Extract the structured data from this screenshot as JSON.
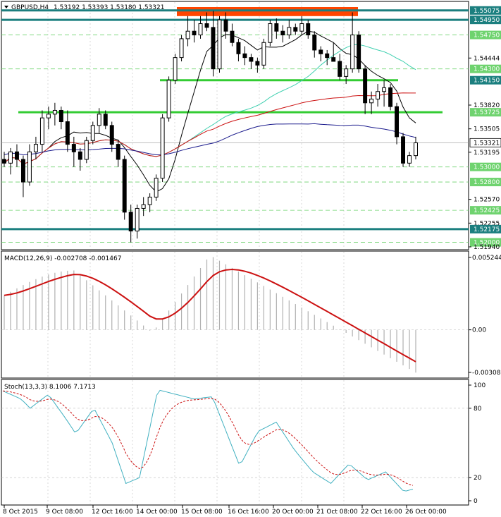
{
  "header": {
    "symbol": "GBPUSD,H4",
    "ohlc": "1.53192 1.53393 1.53180 1.53321"
  },
  "colors": {
    "background": "#ffffff",
    "grid": "#c0c0c0",
    "bull_candle": "#ffffff",
    "bear_candle": "#000000",
    "sma_black": "#000000",
    "sma_navy": "#1a1a8c",
    "sma_red": "#cc1111",
    "sma_teal": "#40d0b0",
    "level_teal": "#1b7f7f",
    "level_green": "#33cc33",
    "zone_orange": "#ff4500",
    "price_label_green": "#6fd36f",
    "current_price_label": "#ffffff",
    "macd_line": "#cc1111",
    "macd_hist": "#b0b0b0",
    "stoch_main": "#40b0c0",
    "stoch_signal": "#cc1111"
  },
  "price_pane": {
    "price_labels": [
      {
        "text": "1.55075",
        "style": "teal"
      },
      {
        "text": "1.54950",
        "style": "teal"
      },
      {
        "text": "1.54750",
        "style": "green"
      },
      {
        "text": "1.54444",
        "style": "plain"
      },
      {
        "text": "1.54300",
        "style": "green"
      },
      {
        "text": "1.54150",
        "style": "teal"
      },
      {
        "text": "1.53820",
        "style": "plain"
      },
      {
        "text": "1.53725",
        "style": "green"
      },
      {
        "text": "1.53505",
        "style": "plain"
      },
      {
        "text": "1.53321",
        "style": "current"
      },
      {
        "text": "1.53195",
        "style": "plain"
      },
      {
        "text": "1.53000",
        "style": "green"
      },
      {
        "text": "1.52800",
        "style": "green"
      },
      {
        "text": "1.52570",
        "style": "plain"
      },
      {
        "text": "1.52425",
        "style": "green"
      },
      {
        "text": "1.52255",
        "style": "plain"
      },
      {
        "text": "1.52175",
        "style": "teal"
      },
      {
        "text": "1.52000",
        "style": "green"
      },
      {
        "text": "1.51940",
        "style": "plain"
      }
    ]
  },
  "macd_pane": {
    "title": "MACD(12,26,9) -0.002708 -0.001467",
    "scale_labels": [
      "0.005244",
      "0.00",
      "-0.003086"
    ]
  },
  "stoch_pane": {
    "title": "Stoch(13,3,3) 8.1006 7.1713",
    "scale_labels": [
      "100",
      "80",
      "20",
      "0"
    ]
  },
  "time_axis": {
    "labels": [
      "8 Oct 2015",
      "9 Oct 08:00",
      "12 Oct 16:00",
      "14 Oct 00:00",
      "15 Oct 08:00",
      "16 Oct 16:00",
      "20 Oct 00:00",
      "21 Oct 08:00",
      "22 Oct 16:00",
      "26 Oct 00:00"
    ]
  },
  "chart_data": [
    {
      "type": "candlestick",
      "title": "GBPUSD,H4",
      "ylim": [
        1.5194,
        1.5512
      ],
      "candles": [
        [
          1.531,
          1.532,
          1.53,
          1.5305
        ],
        [
          1.5305,
          1.5325,
          1.529,
          1.532
        ],
        [
          1.532,
          1.533,
          1.53,
          1.531
        ],
        [
          1.531,
          1.5315,
          1.526,
          1.528
        ],
        [
          1.528,
          1.533,
          1.5275,
          1.532
        ],
        [
          1.532,
          1.534,
          1.531,
          1.533
        ],
        [
          1.533,
          1.5375,
          1.532,
          1.5365
        ],
        [
          1.5365,
          1.538,
          1.535,
          1.537
        ],
        [
          1.537,
          1.5385,
          1.5355,
          1.5375
        ],
        [
          1.5375,
          1.538,
          1.535,
          1.536
        ],
        [
          1.536,
          1.5375,
          1.532,
          1.533
        ],
        [
          1.533,
          1.534,
          1.53,
          1.532
        ],
        [
          1.532,
          1.5325,
          1.5295,
          1.531
        ],
        [
          1.531,
          1.534,
          1.5305,
          1.5335
        ],
        [
          1.5335,
          1.536,
          1.533,
          1.5355
        ],
        [
          1.5355,
          1.5378,
          1.5345,
          1.537
        ],
        [
          1.537,
          1.5375,
          1.535,
          1.5355
        ],
        [
          1.5355,
          1.536,
          1.532,
          1.533
        ],
        [
          1.533,
          1.5335,
          1.53,
          1.531
        ],
        [
          1.531,
          1.5315,
          1.523,
          1.524
        ],
        [
          1.524,
          1.525,
          1.52,
          1.5215
        ],
        [
          1.5215,
          1.525,
          1.5205,
          1.5245
        ],
        [
          1.5245,
          1.526,
          1.5235,
          1.525
        ],
        [
          1.525,
          1.5265,
          1.524,
          1.526
        ],
        [
          1.526,
          1.529,
          1.5255,
          1.5285
        ],
        [
          1.5285,
          1.537,
          1.528,
          1.5365
        ],
        [
          1.5365,
          1.542,
          1.536,
          1.5415
        ],
        [
          1.5415,
          1.545,
          1.541,
          1.5445
        ],
        [
          1.5445,
          1.5475,
          1.544,
          1.547
        ],
        [
          1.547,
          1.55,
          1.546,
          1.548
        ],
        [
          1.548,
          1.5495,
          1.5465,
          1.5475
        ],
        [
          1.5475,
          1.55,
          1.547,
          1.549
        ],
        [
          1.549,
          1.5505,
          1.548,
          1.5485
        ],
        [
          1.5485,
          1.5507,
          1.542,
          1.543
        ],
        [
          1.543,
          1.55,
          1.5425,
          1.5495
        ],
        [
          1.5495,
          1.5505,
          1.547,
          1.548
        ],
        [
          1.548,
          1.549,
          1.546,
          1.5465
        ],
        [
          1.5465,
          1.547,
          1.544,
          1.545
        ],
        [
          1.545,
          1.546,
          1.5435,
          1.5445
        ],
        [
          1.5445,
          1.545,
          1.543,
          1.544
        ],
        [
          1.544,
          1.5445,
          1.5425,
          1.5435
        ],
        [
          1.5435,
          1.547,
          1.543,
          1.5465
        ],
        [
          1.5465,
          1.5495,
          1.546,
          1.549
        ],
        [
          1.549,
          1.5497,
          1.547,
          1.548
        ],
        [
          1.548,
          1.5488,
          1.5465,
          1.5475
        ],
        [
          1.5475,
          1.5495,
          1.547,
          1.5485
        ],
        [
          1.5485,
          1.549,
          1.5475,
          1.548
        ],
        [
          1.548,
          1.55,
          1.5475,
          1.549
        ],
        [
          1.549,
          1.5495,
          1.547,
          1.5475
        ],
        [
          1.5475,
          1.548,
          1.5445,
          1.5455
        ],
        [
          1.5455,
          1.546,
          1.544,
          1.545
        ],
        [
          1.545,
          1.5455,
          1.5435,
          1.5445
        ],
        [
          1.5445,
          1.5465,
          1.544,
          1.544
        ],
        [
          1.544,
          1.545,
          1.5415,
          1.542
        ],
        [
          1.542,
          1.5435,
          1.541,
          1.543
        ],
        [
          1.543,
          1.5505,
          1.5425,
          1.5475
        ],
        [
          1.5475,
          1.548,
          1.5425,
          1.543
        ],
        [
          1.543,
          1.5435,
          1.537,
          1.5385
        ],
        [
          1.5385,
          1.54,
          1.537,
          1.539
        ],
        [
          1.539,
          1.541,
          1.538,
          1.54
        ],
        [
          1.54,
          1.5415,
          1.538,
          1.5405
        ],
        [
          1.5405,
          1.541,
          1.5375,
          1.538
        ],
        [
          1.538,
          1.5385,
          1.533,
          1.534
        ],
        [
          1.534,
          1.5345,
          1.53,
          1.5305
        ],
        [
          1.5305,
          1.532,
          1.53,
          1.5315
        ],
        [
          1.5315,
          1.534,
          1.531,
          1.5332
        ]
      ]
    },
    {
      "type": "bar",
      "title": "MACD(12,26,9)",
      "ylim": [
        -0.003086,
        0.005244
      ]
    },
    {
      "type": "line",
      "title": "Stoch(13,3,3)",
      "ylim": [
        0,
        100
      ]
    }
  ]
}
